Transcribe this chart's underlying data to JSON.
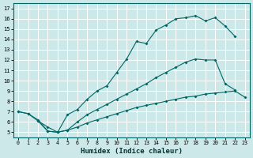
{
  "xlabel": "Humidex (Indice chaleur)",
  "bg_color": "#cce8e8",
  "line_color": "#006666",
  "grid_color": "#ffffff",
  "xlim": [
    -0.5,
    23.5
  ],
  "ylim": [
    4.5,
    17.5
  ],
  "yticks": [
    5,
    6,
    7,
    8,
    9,
    10,
    11,
    12,
    13,
    14,
    15,
    16,
    17
  ],
  "xticks": [
    0,
    1,
    2,
    3,
    4,
    5,
    6,
    7,
    8,
    9,
    10,
    11,
    12,
    13,
    14,
    15,
    16,
    17,
    18,
    19,
    20,
    21,
    22,
    23
  ],
  "curve1": {
    "x": [
      0,
      1,
      2,
      3,
      4,
      5,
      6,
      7,
      8,
      9,
      10,
      11,
      12,
      13,
      14,
      15,
      16,
      17,
      18,
      19,
      20,
      21,
      22
    ],
    "y": [
      7.0,
      6.8,
      6.1,
      5.1,
      5.0,
      6.7,
      7.2,
      8.2,
      9.0,
      9.5,
      10.8,
      12.1,
      13.8,
      13.6,
      14.9,
      15.4,
      16.0,
      16.1,
      16.3,
      15.8,
      16.1,
      15.3,
      14.3
    ]
  },
  "curve2": {
    "x": [
      0,
      1,
      2,
      3,
      4,
      5,
      6,
      7,
      8,
      9,
      10,
      11,
      12,
      13,
      14,
      15,
      16,
      17,
      18,
      19,
      20,
      21,
      22
    ],
    "y": [
      7.0,
      6.8,
      6.2,
      5.1,
      5.0,
      5.2,
      6.0,
      6.7,
      7.2,
      7.7,
      8.2,
      8.7,
      9.2,
      9.7,
      10.3,
      10.8,
      11.3,
      11.8,
      12.1,
      12.0,
      12.0,
      9.7,
      9.1
    ]
  },
  "curve3": {
    "x": [
      2,
      3,
      4,
      5,
      6,
      7,
      8,
      9,
      10,
      11,
      12,
      13,
      14,
      15,
      16,
      17,
      18,
      19,
      20,
      21,
      22,
      23
    ],
    "y": [
      6.1,
      5.5,
      5.0,
      5.2,
      5.5,
      5.9,
      6.2,
      6.5,
      6.8,
      7.1,
      7.4,
      7.6,
      7.8,
      8.0,
      8.2,
      8.4,
      8.5,
      8.7,
      8.8,
      8.9,
      9.0,
      8.4
    ]
  }
}
